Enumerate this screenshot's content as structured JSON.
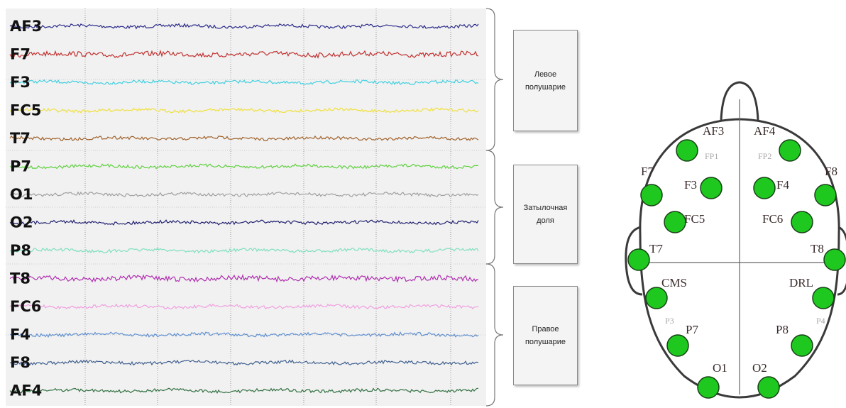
{
  "channels": [
    "AF3",
    "F7",
    "F3",
    "FC5",
    "T7",
    "P7",
    "O1",
    "O2",
    "P8",
    "T8",
    "FC6",
    "F4",
    "F8",
    "AF4"
  ],
  "groups": [
    "Левое полушарие",
    "Затылочная доля",
    "Правое полушарие"
  ],
  "electrodes": [
    {
      "label": "AF3",
      "sublabel": "FP1"
    },
    {
      "label": "AF4",
      "sublabel": "FP2"
    },
    {
      "label": "F7"
    },
    {
      "label": "F8"
    },
    {
      "label": "F3"
    },
    {
      "label": "F4"
    },
    {
      "label": "FC5"
    },
    {
      "label": "FC6"
    },
    {
      "label": "T7"
    },
    {
      "label": "T8"
    },
    {
      "label": "CMS",
      "sublabel": "P3"
    },
    {
      "label": "DRL",
      "sublabel": "P4"
    },
    {
      "label": "P7"
    },
    {
      "label": "P8"
    },
    {
      "label": "O1"
    },
    {
      "label": "O2"
    }
  ]
}
